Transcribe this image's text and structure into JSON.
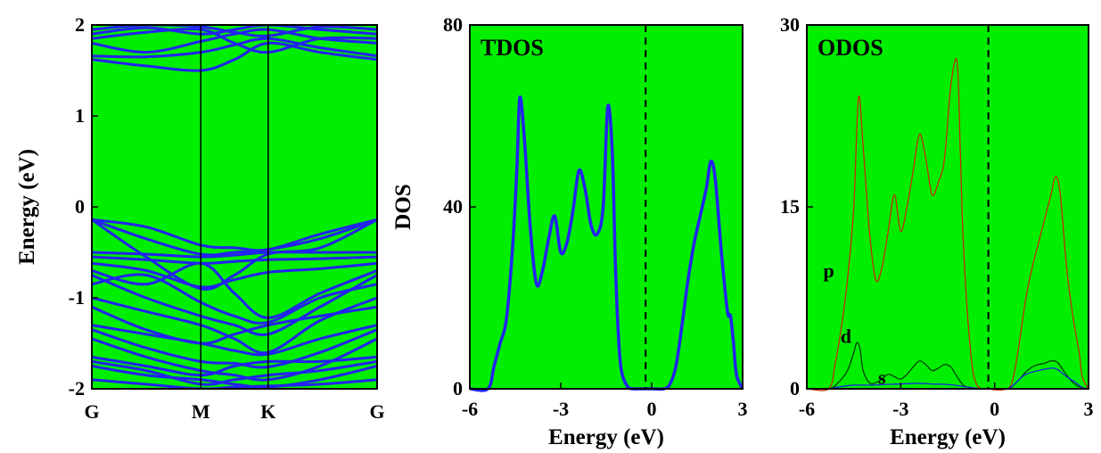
{
  "chart_data": [
    {
      "type": "line",
      "name": "band-structure",
      "title": "",
      "ylabel": "Energy (eV)",
      "xlabel": "",
      "ylim": [
        -2,
        2
      ],
      "yticks": [
        "2",
        "1",
        "0",
        "-1",
        "-2"
      ],
      "kpoints": [
        "G",
        "M",
        "K",
        "G"
      ],
      "kpos": [
        0,
        0.382,
        0.618,
        1
      ],
      "background": "#00ee00",
      "line_color": "#2323ee",
      "series": [
        {
          "x": [
            0,
            0.19,
            0.382,
            0.5,
            0.618,
            0.8,
            1
          ],
          "y": [
            -0.14,
            -0.22,
            -0.42,
            -0.45,
            -0.47,
            -0.3,
            -0.14
          ]
        },
        {
          "x": [
            0,
            0.19,
            0.382,
            0.5,
            0.618,
            0.8,
            1
          ],
          "y": [
            -0.14,
            -0.35,
            -0.52,
            -0.5,
            -0.47,
            -0.35,
            -0.14
          ]
        },
        {
          "x": [
            0,
            0.19,
            0.382,
            0.5,
            0.618,
            0.8,
            1
          ],
          "y": [
            -0.14,
            -0.55,
            -0.9,
            -0.75,
            -0.52,
            -0.45,
            -0.14
          ]
        },
        {
          "x": [
            0,
            0.19,
            0.382,
            0.5,
            0.618,
            0.8,
            1
          ],
          "y": [
            -0.5,
            -0.52,
            -0.55,
            -0.53,
            -0.5,
            -0.5,
            -0.5
          ]
        },
        {
          "x": [
            0,
            0.19,
            0.382,
            0.5,
            0.618,
            0.8,
            1
          ],
          "y": [
            -0.55,
            -0.58,
            -0.62,
            -0.6,
            -0.58,
            -0.57,
            -0.55
          ]
        },
        {
          "x": [
            0,
            0.19,
            0.382,
            0.5,
            0.618,
            0.8,
            1
          ],
          "y": [
            -0.62,
            -0.7,
            -0.88,
            -0.8,
            -0.72,
            -0.68,
            -0.62
          ]
        },
        {
          "x": [
            0,
            0.19,
            0.382,
            0.5,
            0.618,
            0.8,
            1
          ],
          "y": [
            -0.7,
            -0.85,
            -0.62,
            -0.95,
            -1.22,
            -0.95,
            -0.7
          ]
        },
        {
          "x": [
            0,
            0.19,
            0.382,
            0.5,
            0.618,
            0.8,
            1
          ],
          "y": [
            -0.75,
            -1.0,
            -1.2,
            -1.3,
            -1.4,
            -1.1,
            -0.75
          ]
        },
        {
          "x": [
            0,
            0.19,
            0.382,
            0.5,
            0.618,
            0.8,
            1
          ],
          "y": [
            -0.85,
            -0.75,
            -1.05,
            -1.2,
            -1.27,
            -1.0,
            -0.85
          ]
        },
        {
          "x": [
            0,
            0.19,
            0.382,
            0.5,
            0.618,
            0.8,
            1
          ],
          "y": [
            -1.0,
            -1.15,
            -1.3,
            -1.45,
            -1.6,
            -1.25,
            -1.0
          ]
        },
        {
          "x": [
            0,
            0.19,
            0.382,
            0.5,
            0.618,
            0.8,
            1
          ],
          "y": [
            -1.1,
            -1.35,
            -1.5,
            -1.4,
            -1.3,
            -1.2,
            -1.1
          ]
        },
        {
          "x": [
            0,
            0.19,
            0.382,
            0.5,
            0.618,
            0.8,
            1
          ],
          "y": [
            -1.3,
            -1.4,
            -1.5,
            -1.58,
            -1.62,
            -1.45,
            -1.3
          ]
        },
        {
          "x": [
            0,
            0.19,
            0.382,
            0.5,
            0.618,
            0.8,
            1
          ],
          "y": [
            -1.35,
            -1.55,
            -1.7,
            -1.72,
            -1.76,
            -1.6,
            -1.35
          ]
        },
        {
          "x": [
            0,
            0.19,
            0.382,
            0.5,
            0.618,
            0.8,
            1
          ],
          "y": [
            -1.45,
            -1.65,
            -1.8,
            -1.85,
            -1.9,
            -1.75,
            -1.45
          ]
        },
        {
          "x": [
            0,
            0.19,
            0.382,
            0.5,
            0.618,
            0.8,
            1
          ],
          "y": [
            -1.65,
            -1.75,
            -1.85,
            -1.75,
            -1.7,
            -1.7,
            -1.65
          ]
        },
        {
          "x": [
            0,
            0.19,
            0.382,
            0.5,
            0.618,
            0.8,
            1
          ],
          "y": [
            -1.7,
            -1.8,
            -1.95,
            -1.9,
            -1.85,
            -1.8,
            -1.7
          ]
        },
        {
          "x": [
            0,
            0.19,
            0.382,
            0.5,
            0.618,
            0.8,
            1
          ],
          "y": [
            -1.75,
            -1.85,
            -1.9,
            -1.95,
            -1.98,
            -1.9,
            -1.75
          ]
        },
        {
          "x": [
            0,
            0.19,
            0.382,
            0.5,
            0.618,
            0.8,
            1
          ],
          "y": [
            -1.9,
            -1.95,
            -2.0,
            -1.98,
            -1.97,
            -1.95,
            -1.9
          ]
        },
        {
          "x": [
            0,
            0.19,
            0.382,
            0.5,
            0.618,
            0.8,
            1
          ],
          "y": [
            1.62,
            1.55,
            1.5,
            1.62,
            1.8,
            1.7,
            1.62
          ]
        },
        {
          "x": [
            0,
            0.19,
            0.382,
            0.5,
            0.618,
            0.8,
            1
          ],
          "y": [
            1.66,
            1.65,
            1.7,
            1.78,
            1.85,
            1.75,
            1.66
          ]
        },
        {
          "x": [
            0,
            0.19,
            0.382,
            0.5,
            0.618,
            0.8,
            1
          ],
          "y": [
            1.8,
            1.7,
            1.82,
            1.9,
            1.95,
            1.85,
            1.8
          ]
        },
        {
          "x": [
            0,
            0.19,
            0.382,
            0.5,
            0.618,
            0.8,
            1
          ],
          "y": [
            1.85,
            1.92,
            1.95,
            1.8,
            1.7,
            1.85,
            1.85
          ]
        },
        {
          "x": [
            0,
            0.19,
            0.382,
            0.5,
            0.618,
            0.8,
            1
          ],
          "y": [
            1.9,
            1.97,
            1.9,
            1.95,
            2.0,
            1.95,
            1.9
          ]
        },
        {
          "x": [
            0,
            0.19,
            0.382,
            0.5,
            0.618,
            0.8,
            1
          ],
          "y": [
            1.95,
            2.0,
            1.98,
            1.92,
            1.88,
            1.98,
            1.95
          ]
        }
      ]
    },
    {
      "type": "line",
      "name": "tdos",
      "title": "TDOS",
      "xlabel": "Energy (eV)",
      "ylabel": "DOS",
      "xlim": [
        -6,
        3
      ],
      "ylim": [
        0,
        80
      ],
      "xticks": [
        -6,
        -3,
        0,
        3
      ],
      "yticks": [
        0,
        40,
        80
      ],
      "fermi_level": -0.2,
      "background": "#00ee00",
      "line_color": "#2323ee",
      "series": [
        {
          "x": [
            -6,
            -5.4,
            -5.2,
            -5.0,
            -4.8,
            -4.6,
            -4.45,
            -4.35,
            -4.2,
            -4.0,
            -3.8,
            -3.6,
            -3.4,
            -3.2,
            -3.0,
            -2.8,
            -2.6,
            -2.4,
            -2.2,
            -2.0,
            -1.8,
            -1.6,
            -1.45,
            -1.3,
            -1.2,
            -1.1,
            -1.0,
            -0.8,
            -0.6,
            -0.4,
            -0.2,
            0.0,
            0.4,
            0.6,
            0.8,
            1.0,
            1.2,
            1.4,
            1.6,
            1.8,
            1.95,
            2.1,
            2.3,
            2.5,
            2.6,
            2.7,
            2.8,
            3.0
          ],
          "y": [
            0,
            0,
            5,
            10,
            15,
            30,
            48,
            64,
            55,
            35,
            23,
            26,
            33,
            38,
            30,
            32,
            39,
            48,
            44,
            36,
            34,
            40,
            62,
            52,
            28,
            12,
            4,
            0.5,
            0,
            0,
            0,
            0,
            0,
            1,
            5,
            14,
            24,
            32,
            38,
            44,
            50,
            46,
            30,
            17,
            16,
            10,
            3,
            0
          ]
        }
      ]
    },
    {
      "type": "line",
      "name": "odos",
      "title": "ODOS",
      "xlabel": "Energy (eV)",
      "ylabel": "",
      "xlim": [
        -6,
        3
      ],
      "ylim": [
        0,
        30
      ],
      "xticks": [
        -6,
        -3,
        0,
        3
      ],
      "yticks": [
        0,
        15,
        30
      ],
      "fermi_level": -0.2,
      "background": "#00ee00",
      "annotations": [
        {
          "text": "p",
          "x": -5.3,
          "y": 9.2
        },
        {
          "text": "d",
          "x": -4.75,
          "y": 3.8
        },
        {
          "text": "s",
          "x": -3.6,
          "y": 0.4
        }
      ],
      "series": [
        {
          "name": "p",
          "color": "#cc2200",
          "x": [
            -6,
            -5.3,
            -5.1,
            -4.9,
            -4.7,
            -4.5,
            -4.35,
            -4.2,
            -4.0,
            -3.8,
            -3.6,
            -3.4,
            -3.2,
            -3.0,
            -2.8,
            -2.6,
            -2.4,
            -2.2,
            -2.0,
            -1.8,
            -1.6,
            -1.4,
            -1.2,
            -1.1,
            -1.0,
            -0.8,
            -0.6,
            -0.2,
            0.4,
            0.6,
            0.8,
            1.0,
            1.2,
            1.4,
            1.6,
            1.8,
            1.95,
            2.1,
            2.3,
            2.5,
            2.7,
            2.8,
            3.0
          ],
          "y": [
            0,
            0,
            2,
            5,
            9,
            15,
            24,
            20,
            13,
            9,
            10,
            13,
            16,
            13,
            15,
            18,
            21,
            19,
            16,
            17,
            19,
            25,
            27,
            20,
            12,
            4,
            0.5,
            0,
            0,
            1,
            4,
            7.5,
            10,
            12,
            14,
            16,
            17.5,
            16,
            10,
            6,
            3,
            1,
            0
          ]
        },
        {
          "name": "d",
          "color": "#003300",
          "x": [
            -6,
            -5.3,
            -5.0,
            -4.7,
            -4.5,
            -4.4,
            -4.3,
            -4.2,
            -4.0,
            -3.8,
            -3.6,
            -3.4,
            -3.2,
            -3.0,
            -2.8,
            -2.6,
            -2.4,
            -2.2,
            -2.0,
            -1.8,
            -1.6,
            -1.4,
            -1.2,
            -1.0,
            -0.8,
            -0.6,
            -0.2,
            0.4,
            0.6,
            0.8,
            1.0,
            1.2,
            1.4,
            1.6,
            1.8,
            2.0,
            2.2,
            2.4,
            2.6,
            2.8,
            3.0
          ],
          "y": [
            0,
            0,
            0.5,
            1.5,
            3,
            3.8,
            3.3,
            1.5,
            0.5,
            0.5,
            0.8,
            1.2,
            1.0,
            0.8,
            1.2,
            1.8,
            2.3,
            2.0,
            1.5,
            1.7,
            2.0,
            1.8,
            1.0,
            0.3,
            0.1,
            0,
            0,
            0,
            0.3,
            0.8,
            1.4,
            1.8,
            2.0,
            2.1,
            2.3,
            2.2,
            1.5,
            0.8,
            0.3,
            0.1,
            0
          ]
        },
        {
          "name": "s",
          "color": "#1a1aee",
          "x": [
            -6,
            -5.3,
            -5.0,
            -4.5,
            -4.0,
            -3.5,
            -3.0,
            -2.5,
            -2.0,
            -1.5,
            -1.0,
            -0.6,
            -0.2,
            0.4,
            0.6,
            0.8,
            1.0,
            1.4,
            1.8,
            2.0,
            2.3,
            2.6,
            2.8,
            3.0
          ],
          "y": [
            0,
            0,
            0.15,
            0.3,
            0.3,
            0.35,
            0.4,
            0.45,
            0.4,
            0.35,
            0.2,
            0.05,
            0,
            0,
            0.3,
            0.8,
            1.2,
            1.5,
            1.7,
            1.6,
            1.0,
            0.5,
            0.1,
            0
          ]
        }
      ]
    }
  ]
}
